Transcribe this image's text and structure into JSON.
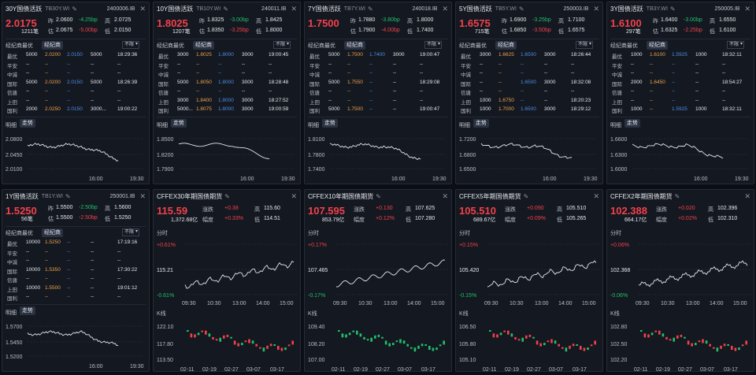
{
  "common": {
    "row_labels": [
      "最优",
      "平安",
      "中诚",
      "国际",
      "信唐",
      "上田",
      "国利"
    ],
    "broker_label": "经纪商最优",
    "broker_btn": "经纪商",
    "select": "不限",
    "minute_label": "明细",
    "trend_btn": "走势",
    "fen_label": "分时",
    "k_label": "K线",
    "yesterday": "昨",
    "volume_lbl_high": "高",
    "low": "低",
    "est": "估",
    "zhangdie": "涨跌",
    "fudu": "幅度",
    "x_axis": [
      "16:00",
      "19:30"
    ],
    "kx": [
      "02-11",
      "02-19",
      "02-27",
      "03-07",
      "03-17"
    ],
    "fx": [
      "09:30",
      "10:30",
      "13:00",
      "14:00",
      "15:00"
    ]
  },
  "panels": [
    {
      "name": "30Y国债活跃",
      "code_short": "TB30Y.WI",
      "code": "2400006.IB",
      "price": "2.0175",
      "prev": "2.0600",
      "chg": "-4.25bp",
      "high": "2.0725",
      "vol": "1211笔",
      "est": "2.0675",
      "est_chg": "-5.00bp",
      "low": "2.0150",
      "rows": [
        [
          "5000",
          "2.0200",
          "2.0150",
          "5000",
          "18:29:36"
        ],
        [
          "--",
          "--",
          "--",
          "--",
          "--"
        ],
        [
          "--",
          "--",
          "--",
          "--",
          "--"
        ],
        [
          "5000",
          "2.0200",
          "2.0150",
          "5000",
          "18:26:39"
        ],
        [
          "--",
          "--",
          "--",
          "--",
          "--"
        ],
        [
          "--",
          "--",
          "--",
          "--",
          "--"
        ],
        [
          "2000",
          "2.0250",
          "2.0150",
          "3000...",
          "19:00:22"
        ]
      ],
      "y_axis": [
        "2.0800",
        "2.0450",
        "2.0100"
      ]
    },
    {
      "name": "10Y国债活跃",
      "code_short": "TB10Y.WI",
      "code": "240011.IB",
      "price": "1.8025",
      "prev": "1.8325",
      "chg": "-3.00bp",
      "high": "1.8425",
      "vol": "1207笔",
      "est": "1.8350",
      "est_chg": "-3.25bp",
      "low": "1.8000",
      "rows": [
        [
          "3000",
          "1.8025",
          "1.8000",
          "3000",
          "19:00:45"
        ],
        [
          "--",
          "--",
          "--",
          "--",
          "--"
        ],
        [
          "--",
          "--",
          "--",
          "--",
          "--"
        ],
        [
          "5000",
          "1.8050",
          "1.8000",
          "3000",
          "18:28:48"
        ],
        [
          "--",
          "--",
          "--",
          "--",
          "--"
        ],
        [
          "3000",
          "1.8400",
          "1.8000",
          "3000",
          "18:27:52"
        ],
        [
          "5000...",
          "1.8075",
          "1.8000",
          "3000",
          "19:00:59"
        ]
      ],
      "y_axis": [
        "1.8500",
        "1.8200",
        "1.7900"
      ]
    },
    {
      "name": "7Y国债活跃",
      "code_short": "TB7Y.WI",
      "code": "240018.IB",
      "price": "1.7500",
      "prev": "1.7880",
      "chg": "-3.80bp",
      "high": "1.8000",
      "vol": "",
      "est": "1.7900",
      "est_chg": "-4.00bp",
      "low": "1.7400",
      "rows": [
        [
          "5000",
          "1.7500",
          "1.7400",
          "3000",
          "19:00:47"
        ],
        [
          "--",
          "--",
          "--",
          "--",
          "--"
        ],
        [
          "--",
          "--",
          "--",
          "--",
          "--"
        ],
        [
          "5000",
          "1.7550",
          "--",
          "--",
          "18:29:08"
        ],
        [
          "--",
          "--",
          "--",
          "--",
          "--"
        ],
        [
          "--",
          "--",
          "--",
          "--",
          "--"
        ],
        [
          "5000",
          "1.7500",
          "--",
          "--",
          "19:00:47"
        ]
      ],
      "y_axis": [
        "1.8100",
        "1.7800",
        "1.7400"
      ]
    },
    {
      "name": "5Y国债活跃",
      "code_short": "TB5Y.WI",
      "code": "250003.IB",
      "price": "1.6575",
      "prev": "1.6900",
      "chg": "-3.25bp",
      "high": "1.7100",
      "vol": "715笔",
      "est": "1.6850",
      "est_chg": "-3.50bp",
      "low": "1.6575",
      "rows": [
        [
          "3000",
          "1.6625",
          "1.6500",
          "3000",
          "18:26:44"
        ],
        [
          "--",
          "--",
          "--",
          "--",
          "--"
        ],
        [
          "--",
          "--",
          "--",
          "--",
          "--"
        ],
        [
          "--",
          "--",
          "1.6500",
          "3000",
          "18:32:08"
        ],
        [
          "--",
          "--",
          "--",
          "--",
          "--"
        ],
        [
          "1000",
          "1.6750",
          "--",
          "--",
          "18:20:23"
        ],
        [
          "1000",
          "1.7000",
          "1.6500",
          "3000",
          "18:29:12"
        ]
      ],
      "y_axis": [
        "1.7200",
        "1.6800",
        "1.6500"
      ]
    },
    {
      "name": "3Y国债活跃",
      "code_short": "TB3Y.WI",
      "code": "250005.IB",
      "price": "1.6100",
      "prev": "1.6400",
      "chg": "-3.00bp",
      "high": "1.6550",
      "vol": "297笔",
      "est": "1.6325",
      "est_chg": "-2.25bp",
      "low": "1.6100",
      "rows": [
        [
          "1000",
          "1.6100",
          "1.5925",
          "1000",
          "18:32:11"
        ],
        [
          "--",
          "--",
          "--",
          "--",
          "--"
        ],
        [
          "--",
          "--",
          "--",
          "--",
          "--"
        ],
        [
          "2000",
          "1.6450",
          "--",
          "--",
          "18:54:27"
        ],
        [
          "--",
          "--",
          "--",
          "--",
          "--"
        ],
        [
          "--",
          "--",
          "--",
          "--",
          "--"
        ],
        [
          "1000",
          "--",
          "1.5925",
          "1000",
          "18:32:11"
        ]
      ],
      "y_axis": [
        "1.6600",
        "1.6300",
        "1.6000"
      ]
    },
    {
      "name": "1Y国债活跃",
      "code_short": "TB1Y.WI",
      "code": "250001.IB",
      "price": "1.5250",
      "prev": "1.5500",
      "chg": "-2.50bp",
      "high": "1.5600",
      "vol": "56笔",
      "est": "1.5500",
      "est_chg": "-2.50bp",
      "low": "1.5250",
      "rows": [
        [
          "10000",
          "1.5250",
          "--",
          "--",
          "17:19:16"
        ],
        [
          "--",
          "--",
          "--",
          "--",
          "--"
        ],
        [
          "--",
          "--",
          "--",
          "--",
          "--"
        ],
        [
          "10000",
          "1.5350",
          "--",
          "--",
          "17:30:22"
        ],
        [
          "--",
          "--",
          "--",
          "--",
          "--"
        ],
        [
          "10000",
          "1.5500",
          "--",
          "--",
          "19:01:12"
        ],
        [
          "--",
          "--",
          "--",
          "--",
          "--"
        ]
      ],
      "y_axis": [
        "1.5700",
        "1.5450",
        "1.5200"
      ]
    }
  ],
  "futures": [
    {
      "name": "CFFEX30年期国债期货",
      "price": "115.59",
      "chg": "+0.38",
      "high": "115.60",
      "amt": "1,372.68亿",
      "pct": "+0.33%",
      "low": "114.51",
      "top": "+0.61%",
      "mid": "115.21",
      "bot": "-0.61%",
      "ky": [
        "122.10",
        "117.80",
        "113.50"
      ]
    },
    {
      "name": "CFFEX10年期国债期货",
      "price": "107.595",
      "chg": "+0.130",
      "high": "107.625",
      "amt": "853.79亿",
      "pct": "+0.12%",
      "low": "107.280",
      "top": "+0.17%",
      "mid": "107.465",
      "bot": "-0.17%",
      "ky": [
        "109.40",
        "108.20",
        "107.00"
      ]
    },
    {
      "name": "CFFEX5年期国债期货",
      "price": "105.510",
      "chg": "+0.090",
      "high": "105.510",
      "amt": "689.67亿",
      "pct": "+0.09%",
      "low": "105.265",
      "top": "+0.15%",
      "mid": "105.420",
      "bot": "-0.15%",
      "ky": [
        "106.50",
        "105.80",
        "105.10"
      ]
    },
    {
      "name": "CFFEX2年期国债期货",
      "price": "102.388",
      "chg": "+0.020",
      "high": "102.396",
      "amt": "664.17亿",
      "pct": "+0.02%",
      "low": "102.310",
      "top": "+0.06%",
      "mid": "102.368",
      "bot": "-0.06%",
      "ky": [
        "102.80",
        "102.50",
        "102.20"
      ]
    }
  ],
  "colors": {
    "red": "#f2414c",
    "green": "#21c06b",
    "blue": "#4d8ee8",
    "orange": "#f0a24b"
  }
}
